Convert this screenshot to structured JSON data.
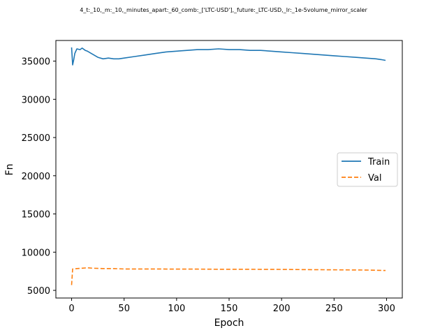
{
  "chart_data": {
    "type": "line",
    "title": "4_t:_10,_m:_10,_minutes_apart:_60_comb:_['LTC-USD'],_future:_LTC-USD,_lr:_1e-5volume_mirror_scaler",
    "xlabel": "Epoch",
    "ylabel": "Fn",
    "xlim": [
      -15,
      315
    ],
    "ylim": [
      4000,
      37700
    ],
    "x_ticks": [
      0,
      50,
      100,
      150,
      200,
      250,
      300
    ],
    "y_ticks": [
      5000,
      10000,
      15000,
      20000,
      25000,
      30000,
      35000
    ],
    "grid": false,
    "legend_position": "center-right",
    "series": [
      {
        "name": "Train",
        "color": "#1f77b4",
        "style": "solid",
        "x": [
          0,
          1,
          2,
          3,
          5,
          8,
          10,
          13,
          15,
          20,
          25,
          30,
          35,
          40,
          45,
          50,
          60,
          70,
          80,
          90,
          100,
          110,
          120,
          130,
          140,
          150,
          160,
          170,
          180,
          190,
          200,
          210,
          220,
          230,
          240,
          250,
          260,
          270,
          280,
          290,
          295,
          299
        ],
        "y": [
          36800,
          34500,
          35200,
          36000,
          36600,
          36500,
          36700,
          36400,
          36300,
          35900,
          35500,
          35300,
          35400,
          35300,
          35300,
          35400,
          35600,
          35800,
          36000,
          36200,
          36300,
          36400,
          36500,
          36500,
          36600,
          36500,
          36500,
          36400,
          36400,
          36300,
          36200,
          36100,
          36000,
          35900,
          35800,
          35700,
          35600,
          35500,
          35400,
          35300,
          35200,
          35100
        ]
      },
      {
        "name": "Val",
        "color": "#ff7f0e",
        "style": "dashed",
        "x": [
          0,
          1,
          2,
          5,
          10,
          15,
          20,
          30,
          40,
          50,
          60,
          80,
          100,
          120,
          140,
          160,
          180,
          200,
          220,
          240,
          260,
          280,
          299
        ],
        "y": [
          5700,
          7800,
          7800,
          7850,
          7900,
          7950,
          7900,
          7850,
          7850,
          7800,
          7800,
          7800,
          7780,
          7780,
          7760,
          7760,
          7750,
          7740,
          7720,
          7700,
          7680,
          7660,
          7600
        ]
      }
    ]
  }
}
